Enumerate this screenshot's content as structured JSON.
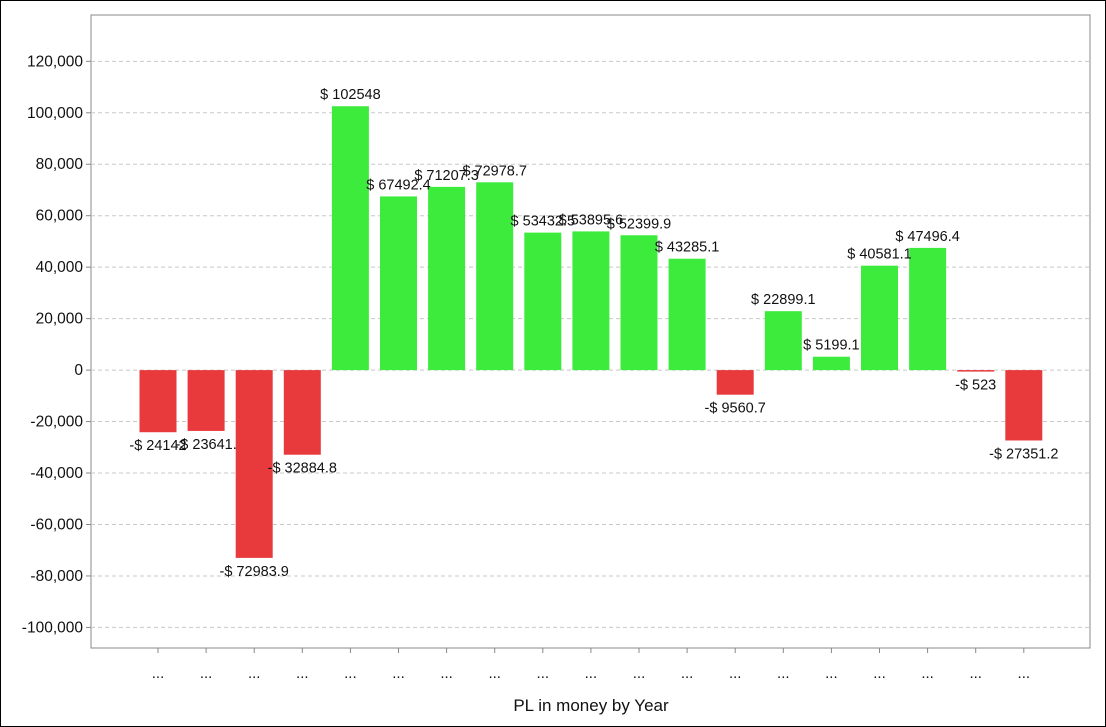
{
  "chart_data": {
    "type": "bar",
    "title": "",
    "xlabel": "PL in money by Year",
    "ylabel": "",
    "ylim": [
      -108000,
      138000
    ],
    "yticks": [
      -100000,
      -80000,
      -60000,
      -40000,
      -20000,
      0,
      20000,
      40000,
      60000,
      80000,
      100000,
      120000
    ],
    "ytick_labels": [
      "-100,000",
      "-80,000",
      "-60,000",
      "-40,000",
      "-20,000",
      "0",
      "20,000",
      "40,000",
      "60,000",
      "80,000",
      "100,000",
      "120,000"
    ],
    "grid": true,
    "categories": [
      "...",
      "...",
      "...",
      "...",
      "...",
      "...",
      "...",
      "...",
      "...",
      "...",
      "...",
      "...",
      "...",
      "...",
      "...",
      "...",
      "...",
      "...",
      "..."
    ],
    "values": [
      -24142,
      -23641,
      -72983.9,
      -32884.8,
      102548,
      67492.4,
      71207.3,
      72978.7,
      53432.5,
      53895.6,
      52399.9,
      43285.1,
      -9560.7,
      22899.1,
      5199.1,
      40581.1,
      47496.4,
      -523,
      -27351.2
    ],
    "data_labels": [
      "-$ 24142",
      "-$ 23641.",
      "-$ 72983.9",
      "-$ 32884.8",
      "$ 102548",
      "$ 67492.4",
      "$ 71207.3",
      "$ 72978.7",
      "$ 53432.5",
      "$ 53895.6",
      "$ 52399.9",
      "$ 43285.1",
      "-$ 9560.7",
      "$ 22899.1",
      "$ 5199.1",
      "$ 40581.1",
      "$ 47496.4",
      "-$ 523",
      "-$ 27351.2"
    ],
    "colors": {
      "positive": "#3ceb3c",
      "negative": "#e8393d"
    }
  }
}
